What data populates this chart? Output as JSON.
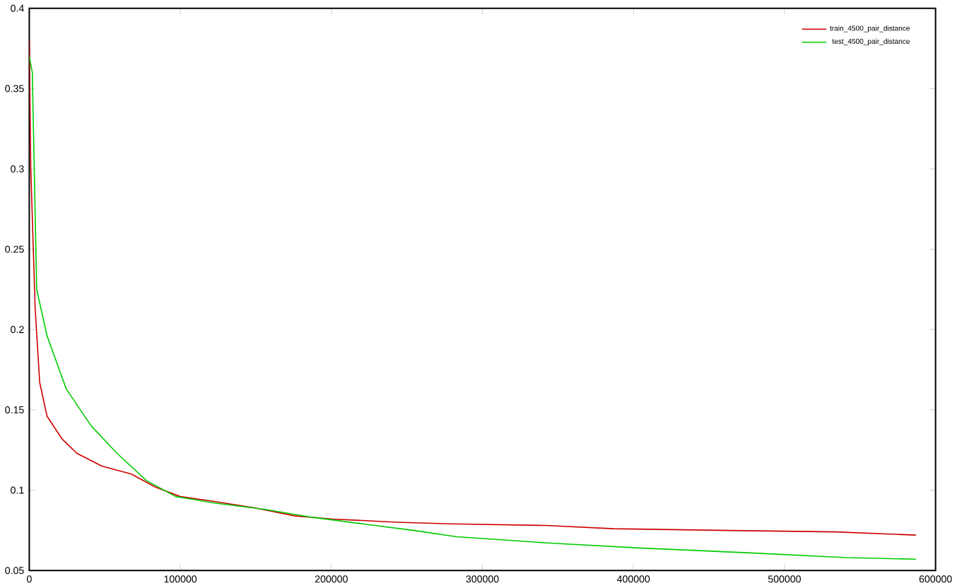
{
  "chart_data": {
    "type": "line",
    "xlim": [
      0,
      600000
    ],
    "ylim": [
      0.05,
      0.4
    ],
    "xticks": [
      0,
      100000,
      200000,
      300000,
      400000,
      500000,
      600000
    ],
    "yticks": [
      0.05,
      0.1,
      0.15,
      0.2,
      0.25,
      0.3,
      0.35,
      0.4
    ],
    "grid": false,
    "legend": "top right",
    "marker": "none",
    "line_style": "solid",
    "series": [
      {
        "name": "train_4500_pair_distance",
        "color": "#cc0000",
        "x": [
          0,
          1000,
          3900,
          6900,
          11800,
          21600,
          31400,
          48000,
          67600,
          83300,
          100000,
          122500,
          149000,
          175500,
          201000,
          244000,
          279000,
          342000,
          387000,
          456000,
          534000,
          587000
        ],
        "values": [
          0.38,
          0.3,
          0.213,
          0.167,
          0.146,
          0.132,
          0.123,
          0.115,
          0.11,
          0.102,
          0.096,
          0.093,
          0.089,
          0.084,
          0.082,
          0.08,
          0.079,
          0.078,
          0.076,
          0.075,
          0.074,
          0.072
        ]
      },
      {
        "name": "test_4500_pair_distance",
        "color": "#00cc00",
        "x": [
          0,
          2000,
          4900,
          11800,
          24500,
          41000,
          58000,
          77500,
          97000,
          122500,
          156000,
          188000,
          220500,
          254000,
          283000,
          345000,
          404000,
          475500,
          541000,
          587000
        ],
        "values": [
          0.37,
          0.36,
          0.225,
          0.196,
          0.163,
          0.14,
          0.123,
          0.106,
          0.096,
          0.092,
          0.088,
          0.083,
          0.079,
          0.075,
          0.071,
          0.067,
          0.064,
          0.061,
          0.058,
          0.057
        ]
      }
    ]
  }
}
